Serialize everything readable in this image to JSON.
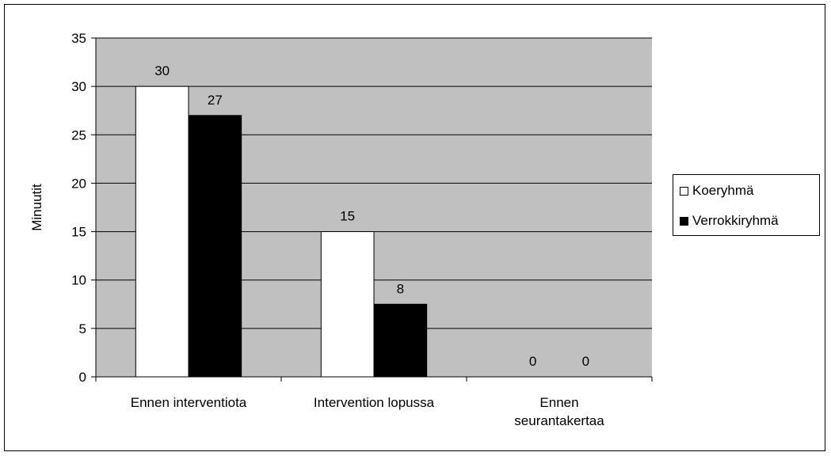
{
  "chart_data": {
    "type": "bar",
    "categories": [
      "Ennen interventiota",
      "Intervention lopussa",
      "Ennen\nseurantakertaa"
    ],
    "series": [
      {
        "name": "Koeryhmä",
        "values": [
          30,
          15,
          0
        ],
        "labels": [
          "30",
          "15",
          "0"
        ],
        "color": "#ffffff"
      },
      {
        "name": "Verrokkiryhmä",
        "values": [
          27,
          7.5,
          0
        ],
        "labels": [
          "27",
          "8",
          "0"
        ],
        "color": "#000000"
      }
    ],
    "title": "",
    "xlabel": "",
    "ylabel": "Minuutit",
    "ylim": [
      0,
      35
    ],
    "yticks": [
      0,
      5,
      10,
      15,
      20,
      25,
      30,
      35
    ],
    "grid": true,
    "plot_background": "#c0c0c0",
    "legend_position": "right"
  }
}
